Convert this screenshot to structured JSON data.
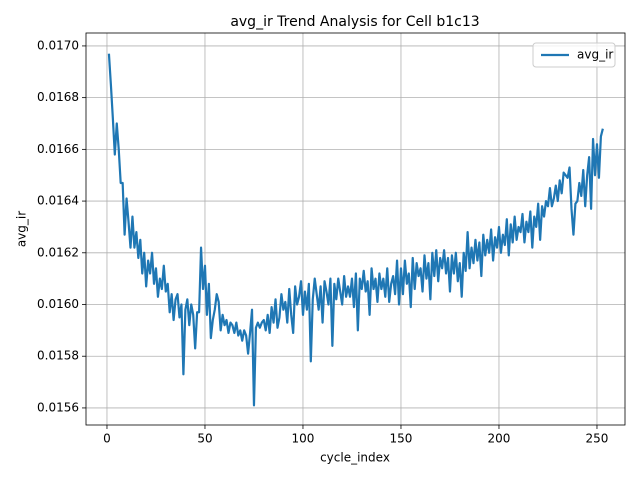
{
  "chart_data": {
    "type": "line",
    "title": "avg_ir Trend Analysis for Cell b1c13",
    "xlabel": "cycle_index",
    "ylabel": "avg_ir",
    "x": [
      1,
      2,
      3,
      4,
      5,
      6,
      7,
      8,
      9,
      10,
      11,
      12,
      13,
      14,
      15,
      16,
      17,
      18,
      19,
      20,
      21,
      22,
      23,
      24,
      25,
      26,
      27,
      28,
      29,
      30,
      31,
      32,
      33,
      34,
      35,
      36,
      37,
      38,
      39,
      40,
      41,
      42,
      43,
      44,
      45,
      46,
      47,
      48,
      49,
      50,
      51,
      52,
      53,
      54,
      55,
      56,
      57,
      58,
      59,
      60,
      61,
      62,
      63,
      64,
      65,
      66,
      67,
      68,
      69,
      70,
      71,
      72,
      73,
      74,
      75,
      76,
      77,
      78,
      79,
      80,
      81,
      82,
      83,
      84,
      85,
      86,
      87,
      88,
      89,
      90,
      91,
      92,
      93,
      94,
      95,
      96,
      97,
      98,
      99,
      100,
      101,
      102,
      103,
      104,
      105,
      106,
      107,
      108,
      109,
      110,
      111,
      112,
      113,
      114,
      115,
      116,
      117,
      118,
      119,
      120,
      121,
      122,
      123,
      124,
      125,
      126,
      127,
      128,
      129,
      130,
      131,
      132,
      133,
      134,
      135,
      136,
      137,
      138,
      139,
      140,
      141,
      142,
      143,
      144,
      145,
      146,
      147,
      148,
      149,
      150,
      151,
      152,
      153,
      154,
      155,
      156,
      157,
      158,
      159,
      160,
      161,
      162,
      163,
      164,
      165,
      166,
      167,
      168,
      169,
      170,
      171,
      172,
      173,
      174,
      175,
      176,
      177,
      178,
      179,
      180,
      181,
      182,
      183,
      184,
      185,
      186,
      187,
      188,
      189,
      190,
      191,
      192,
      193,
      194,
      195,
      196,
      197,
      198,
      199,
      200,
      201,
      202,
      203,
      204,
      205,
      206,
      207,
      208,
      209,
      210,
      211,
      212,
      213,
      214,
      215,
      216,
      217,
      218,
      219,
      220,
      221,
      222,
      223,
      224,
      225,
      226,
      227,
      228,
      229,
      230,
      231,
      232,
      233,
      234,
      235,
      236,
      237,
      238,
      239,
      240,
      241,
      242,
      243,
      244,
      245,
      246,
      247,
      248,
      249,
      250,
      251,
      252,
      253
    ],
    "series": [
      {
        "name": "avg_ir",
        "color": "#1f77b4",
        "values": [
          0.01697,
          0.01685,
          0.01672,
          0.01658,
          0.0167,
          0.0166,
          0.01647,
          0.01647,
          0.01627,
          0.01641,
          0.01632,
          0.01622,
          0.01634,
          0.01622,
          0.01628,
          0.01618,
          0.01625,
          0.01612,
          0.0162,
          0.01607,
          0.01617,
          0.01612,
          0.0162,
          0.01608,
          0.01614,
          0.01603,
          0.0161,
          0.01606,
          0.01615,
          0.01605,
          0.01608,
          0.01597,
          0.01604,
          0.01594,
          0.01602,
          0.01604,
          0.01595,
          0.016,
          0.01573,
          0.01598,
          0.01602,
          0.01592,
          0.016,
          0.01596,
          0.01583,
          0.01597,
          0.01597,
          0.01622,
          0.01606,
          0.01615,
          0.01596,
          0.01608,
          0.01587,
          0.01594,
          0.01598,
          0.01604,
          0.01601,
          0.0159,
          0.01596,
          0.01592,
          0.01594,
          0.01589,
          0.01593,
          0.01592,
          0.01589,
          0.01593,
          0.01588,
          0.0159,
          0.01586,
          0.0159,
          0.01588,
          0.01581,
          0.01589,
          0.01598,
          0.01561,
          0.01591,
          0.01593,
          0.01591,
          0.01593,
          0.01594,
          0.0159,
          0.01596,
          0.01589,
          0.01599,
          0.01593,
          0.01602,
          0.01591,
          0.01595,
          0.01604,
          0.01598,
          0.01601,
          0.01593,
          0.01606,
          0.01596,
          0.01589,
          0.01607,
          0.016,
          0.01603,
          0.01609,
          0.01596,
          0.01605,
          0.01598,
          0.01608,
          0.01578,
          0.01602,
          0.0161,
          0.01604,
          0.01598,
          0.01607,
          0.01593,
          0.01609,
          0.01605,
          0.016,
          0.0161,
          0.01584,
          0.01608,
          0.01602,
          0.0161,
          0.01605,
          0.016,
          0.01611,
          0.01603,
          0.01607,
          0.01603,
          0.0161,
          0.01599,
          0.01612,
          0.0159,
          0.0161,
          0.01606,
          0.01613,
          0.01605,
          0.01609,
          0.01596,
          0.01614,
          0.01606,
          0.0161,
          0.01601,
          0.01612,
          0.01606,
          0.0161,
          0.01603,
          0.01614,
          0.01601,
          0.01608,
          0.01611,
          0.01604,
          0.01617,
          0.016,
          0.01614,
          0.01604,
          0.01617,
          0.01608,
          0.01612,
          0.01599,
          0.01618,
          0.01606,
          0.01616,
          0.01611,
          0.01614,
          0.01605,
          0.01619,
          0.0161,
          0.01616,
          0.01602,
          0.0162,
          0.01611,
          0.01621,
          0.01609,
          0.01618,
          0.01614,
          0.01621,
          0.01612,
          0.01618,
          0.01605,
          0.01619,
          0.01612,
          0.0162,
          0.01609,
          0.01616,
          0.01603,
          0.0162,
          0.01613,
          0.01628,
          0.01614,
          0.01622,
          0.01616,
          0.01625,
          0.01617,
          0.01624,
          0.01611,
          0.01627,
          0.01619,
          0.01625,
          0.0162,
          0.01629,
          0.01617,
          0.01626,
          0.01622,
          0.0163,
          0.0162,
          0.01627,
          0.01623,
          0.01633,
          0.01619,
          0.01631,
          0.01624,
          0.01634,
          0.01625,
          0.0163,
          0.01628,
          0.01635,
          0.01624,
          0.01632,
          0.01628,
          0.01636,
          0.01622,
          0.01634,
          0.0163,
          0.01639,
          0.01625,
          0.01638,
          0.01634,
          0.0164,
          0.01638,
          0.01645,
          0.01638,
          0.01641,
          0.01646,
          0.0164,
          0.01648,
          0.01643,
          0.01651,
          0.0165,
          0.01649,
          0.01653,
          0.01637,
          0.01627,
          0.01639,
          0.0164,
          0.01647,
          0.01642,
          0.01652,
          0.01638,
          0.0165,
          0.01657,
          0.01637,
          0.01664,
          0.0165,
          0.01662,
          0.01649,
          0.01665,
          0.01668
        ]
      }
    ],
    "xlim": [
      -10.7,
      264.3
    ],
    "xticks": [
      0,
      50,
      100,
      150,
      200,
      250
    ],
    "ylim": [
      0.015534,
      0.01705
    ],
    "yticks": [
      0.0156,
      0.0158,
      {
        "value": 0.016,
        "label": "0.0160"
      },
      0.0162,
      0.0164,
      0.0166,
      0.0168,
      {
        "value": 0.017,
        "label": "0.0170"
      }
    ],
    "grid": true,
    "legend": "upper right"
  }
}
